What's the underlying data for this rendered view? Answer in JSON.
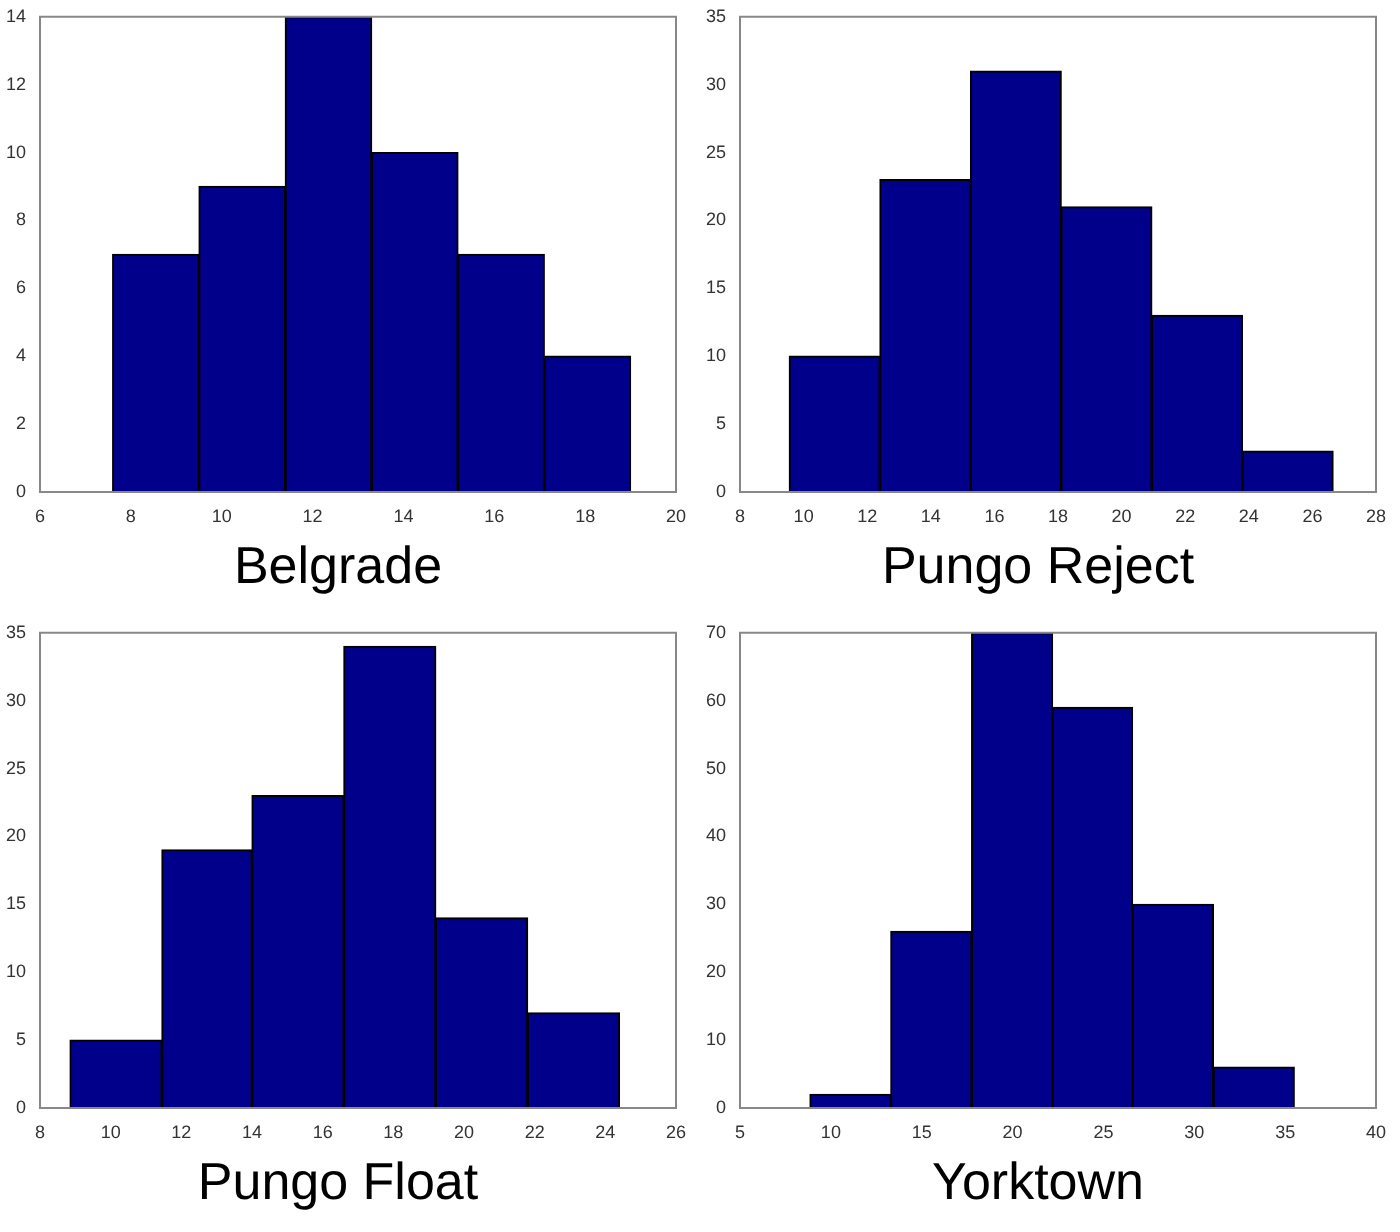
{
  "chart_data": [
    {
      "type": "histogram",
      "xlabel": "Belgrade",
      "bins": [
        7.6,
        9.5,
        11.4,
        13.3,
        15.2,
        17.1,
        19.0
      ],
      "values": [
        7,
        9,
        14,
        10,
        7,
        4
      ],
      "color": "#00008b",
      "xlim": [
        6,
        20
      ],
      "xticks": [
        6,
        8,
        10,
        12,
        14,
        16,
        18,
        20
      ],
      "ylim": [
        0,
        14
      ],
      "yticks": [
        0,
        2,
        4,
        6,
        8,
        10,
        12,
        14
      ]
    },
    {
      "type": "histogram",
      "xlabel": "Pungo Reject",
      "bins": [
        9.55,
        12.4,
        15.25,
        18.1,
        20.95,
        23.8,
        26.65
      ],
      "values": [
        10,
        23,
        31,
        21,
        13,
        3
      ],
      "color": "#00008b",
      "xlim": [
        8,
        28
      ],
      "xticks": [
        8,
        10,
        12,
        14,
        16,
        18,
        20,
        22,
        24,
        26,
        28
      ],
      "ylim": [
        0,
        35
      ],
      "yticks": [
        0,
        5,
        10,
        15,
        20,
        25,
        30,
        35
      ]
    },
    {
      "type": "histogram",
      "xlabel": "Pungo Float",
      "bins": [
        8.85,
        11.45,
        14.0,
        16.6,
        19.2,
        21.8,
        24.4
      ],
      "values": [
        5,
        19,
        23,
        34,
        14,
        7
      ],
      "color": "#00008b",
      "xlim": [
        8,
        26
      ],
      "xticks": [
        8,
        10,
        12,
        14,
        16,
        18,
        20,
        22,
        24,
        26
      ],
      "ylim": [
        0,
        35
      ],
      "yticks": [
        0,
        5,
        10,
        15,
        20,
        25,
        30,
        35
      ]
    },
    {
      "type": "histogram",
      "xlabel": "Yorktown",
      "bins": [
        8.85,
        13.3,
        17.75,
        22.2,
        26.6,
        31.05,
        35.5
      ],
      "values": [
        2,
        26,
        70,
        59,
        30,
        6
      ],
      "color": "#00008b",
      "xlim": [
        5,
        40
      ],
      "xticks": [
        5,
        10,
        15,
        20,
        25,
        30,
        35,
        40
      ],
      "ylim": [
        0,
        70
      ],
      "yticks": [
        0,
        10,
        20,
        30,
        40,
        50,
        60,
        70
      ]
    }
  ]
}
